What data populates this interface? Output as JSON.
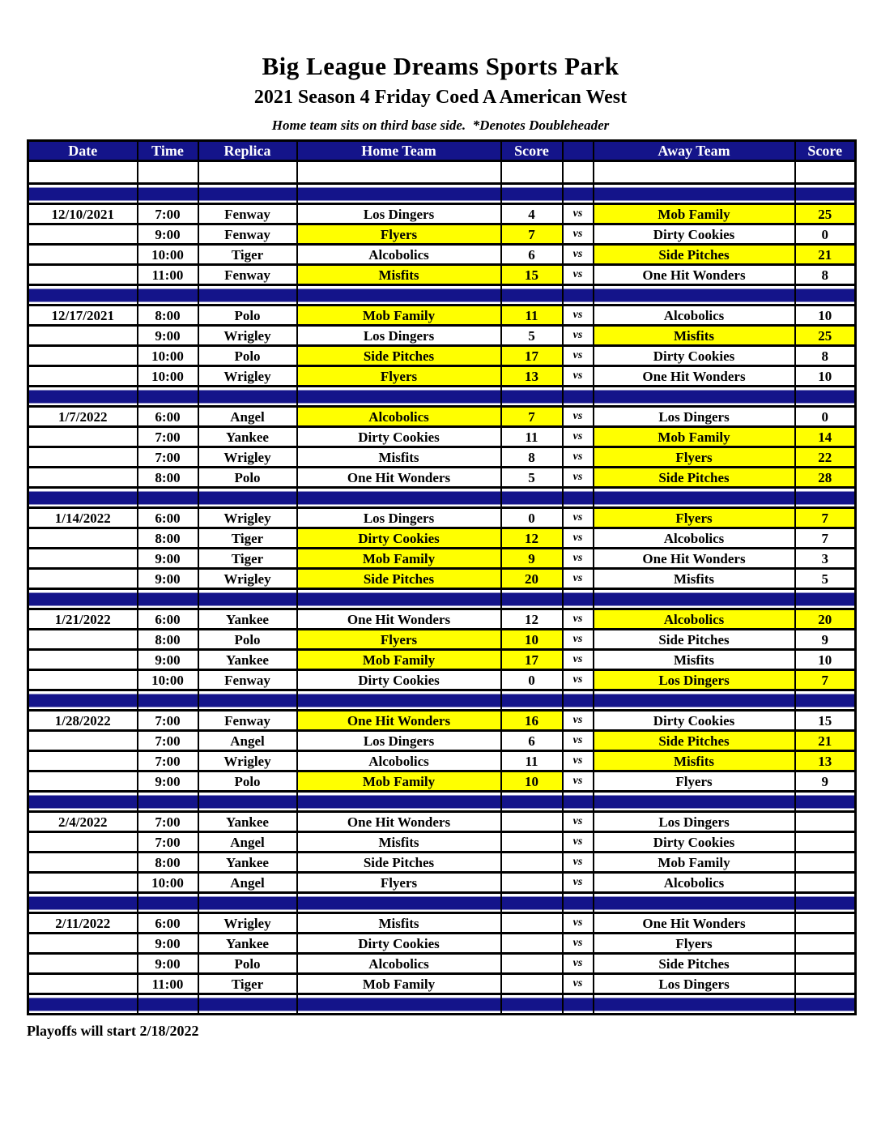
{
  "header": {
    "title": "Big League Dreams Sports Park",
    "subtitle": "2021 Season 4 Friday Coed A American West",
    "note": "Home team sits on third base side.  *Denotes Doubleheader"
  },
  "colors": {
    "navy": "#14148a",
    "highlight": "#ffff00",
    "header_text": "#ffffff",
    "grid": "#000000"
  },
  "schedule_table": {
    "column_headers": [
      "Date",
      "Time",
      "Replica",
      "Home Team",
      "Score",
      "",
      "Away Team",
      "Score"
    ],
    "vs_label": "vs",
    "blocks": [
      {
        "date": "12/10/2021",
        "games": [
          {
            "time": "7:00",
            "replica": "Fenway",
            "home": "Los Dingers",
            "home_score": "4",
            "away": "Mob Family",
            "away_score": "25",
            "winner": "away"
          },
          {
            "time": "9:00",
            "replica": "Fenway",
            "home": "Flyers",
            "home_score": "7",
            "away": "Dirty Cookies",
            "away_score": "0",
            "winner": "home"
          },
          {
            "time": "10:00",
            "replica": "Tiger",
            "home": "Alcobolics",
            "home_score": "6",
            "away": "Side Pitches",
            "away_score": "21",
            "winner": "away"
          },
          {
            "time": "11:00",
            "replica": "Fenway",
            "home": "Misfits",
            "home_score": "15",
            "away": "One Hit Wonders",
            "away_score": "8",
            "winner": "home"
          }
        ]
      },
      {
        "date": "12/17/2021",
        "games": [
          {
            "time": "8:00",
            "replica": "Polo",
            "home": "Mob Family",
            "home_score": "11",
            "away": "Alcobolics",
            "away_score": "10",
            "winner": "home"
          },
          {
            "time": "9:00",
            "replica": "Wrigley",
            "home": "Los Dingers",
            "home_score": "5",
            "away": "Misfits",
            "away_score": "25",
            "winner": "away"
          },
          {
            "time": "10:00",
            "replica": "Polo",
            "home": "Side Pitches",
            "home_score": "17",
            "away": "Dirty Cookies",
            "away_score": "8",
            "winner": "home"
          },
          {
            "time": "10:00",
            "replica": "Wrigley",
            "home": "Flyers",
            "home_score": "13",
            "away": "One Hit Wonders",
            "away_score": "10",
            "winner": "home"
          }
        ]
      },
      {
        "date": "1/7/2022",
        "games": [
          {
            "time": "6:00",
            "replica": "Angel",
            "home": "Alcobolics",
            "home_score": "7",
            "away": "Los Dingers",
            "away_score": "0",
            "winner": "home"
          },
          {
            "time": "7:00",
            "replica": "Yankee",
            "home": "Dirty Cookies",
            "home_score": "11",
            "away": "Mob Family",
            "away_score": "14",
            "winner": "away"
          },
          {
            "time": "7:00",
            "replica": "Wrigley",
            "home": "Misfits",
            "home_score": "8",
            "away": "Flyers",
            "away_score": "22",
            "winner": "away"
          },
          {
            "time": "8:00",
            "replica": "Polo",
            "home": "One Hit Wonders",
            "home_score": "5",
            "away": "Side Pitches",
            "away_score": "28",
            "winner": "away"
          }
        ]
      },
      {
        "date": "1/14/2022",
        "games": [
          {
            "time": "6:00",
            "replica": "Wrigley",
            "home": "Los Dingers",
            "home_score": "0",
            "away": "Flyers",
            "away_score": "7",
            "winner": "away"
          },
          {
            "time": "8:00",
            "replica": "Tiger",
            "home": "Dirty Cookies",
            "home_score": "12",
            "away": "Alcobolics",
            "away_score": "7",
            "winner": "home"
          },
          {
            "time": "9:00",
            "replica": "Tiger",
            "home": "Mob Family",
            "home_score": "9",
            "away": "One Hit Wonders",
            "away_score": "3",
            "winner": "home"
          },
          {
            "time": "9:00",
            "replica": "Wrigley",
            "home": "Side Pitches",
            "home_score": "20",
            "away": "Misfits",
            "away_score": "5",
            "winner": "home"
          }
        ]
      },
      {
        "date": "1/21/2022",
        "games": [
          {
            "time": "6:00",
            "replica": "Yankee",
            "home": "One Hit Wonders",
            "home_score": "12",
            "away": "Alcobolics",
            "away_score": "20",
            "winner": "away"
          },
          {
            "time": "8:00",
            "replica": "Polo",
            "home": "Flyers",
            "home_score": "10",
            "away": "Side Pitches",
            "away_score": "9",
            "winner": "home"
          },
          {
            "time": "9:00",
            "replica": "Yankee",
            "home": "Mob Family",
            "home_score": "17",
            "away": "Misfits",
            "away_score": "10",
            "winner": "home"
          },
          {
            "time": "10:00",
            "replica": "Fenway",
            "home": "Dirty Cookies",
            "home_score": "0",
            "away": "Los Dingers",
            "away_score": "7",
            "winner": "away"
          }
        ]
      },
      {
        "date": "1/28/2022",
        "games": [
          {
            "time": "7:00",
            "replica": "Fenway",
            "home": "One Hit Wonders",
            "home_score": "16",
            "away": "Dirty Cookies",
            "away_score": "15",
            "winner": "home"
          },
          {
            "time": "7:00",
            "replica": "Angel",
            "home": "Los Dingers",
            "home_score": "6",
            "away": "Side Pitches",
            "away_score": "21",
            "winner": "away"
          },
          {
            "time": "7:00",
            "replica": "Wrigley",
            "home": "Alcobolics",
            "home_score": "11",
            "away": "Misfits",
            "away_score": "13",
            "winner": "away"
          },
          {
            "time": "9:00",
            "replica": "Polo",
            "home": "Mob Family",
            "home_score": "10",
            "away": "Flyers",
            "away_score": "9",
            "winner": "home"
          }
        ]
      },
      {
        "date": "2/4/2022",
        "games": [
          {
            "time": "7:00",
            "replica": "Yankee",
            "home": "One Hit Wonders",
            "home_score": "",
            "away": "Los Dingers",
            "away_score": "",
            "winner": "none"
          },
          {
            "time": "7:00",
            "replica": "Angel",
            "home": "Misfits",
            "home_score": "",
            "away": "Dirty Cookies",
            "away_score": "",
            "winner": "none"
          },
          {
            "time": "8:00",
            "replica": "Yankee",
            "home": "Side Pitches",
            "home_score": "",
            "away": "Mob Family",
            "away_score": "",
            "winner": "none"
          },
          {
            "time": "10:00",
            "replica": "Angel",
            "home": "Flyers",
            "home_score": "",
            "away": "Alcobolics",
            "away_score": "",
            "winner": "none"
          }
        ]
      },
      {
        "date": "2/11/2022",
        "games": [
          {
            "time": "6:00",
            "replica": "Wrigley",
            "home": "Misfits",
            "home_score": "",
            "away": "One Hit Wonders",
            "away_score": "",
            "winner": "none"
          },
          {
            "time": "9:00",
            "replica": "Yankee",
            "home": "Dirty Cookies",
            "home_score": "",
            "away": "Flyers",
            "away_score": "",
            "winner": "none"
          },
          {
            "time": "9:00",
            "replica": "Polo",
            "home": "Alcobolics",
            "home_score": "",
            "away": "Side Pitches",
            "away_score": "",
            "winner": "none"
          },
          {
            "time": "11:00",
            "replica": "Tiger",
            "home": "Mob Family",
            "home_score": "",
            "away": "Los Dingers",
            "away_score": "",
            "winner": "none"
          }
        ]
      }
    ]
  },
  "footer": {
    "playoffs_note": "Playoffs will start 2/18/2022"
  }
}
